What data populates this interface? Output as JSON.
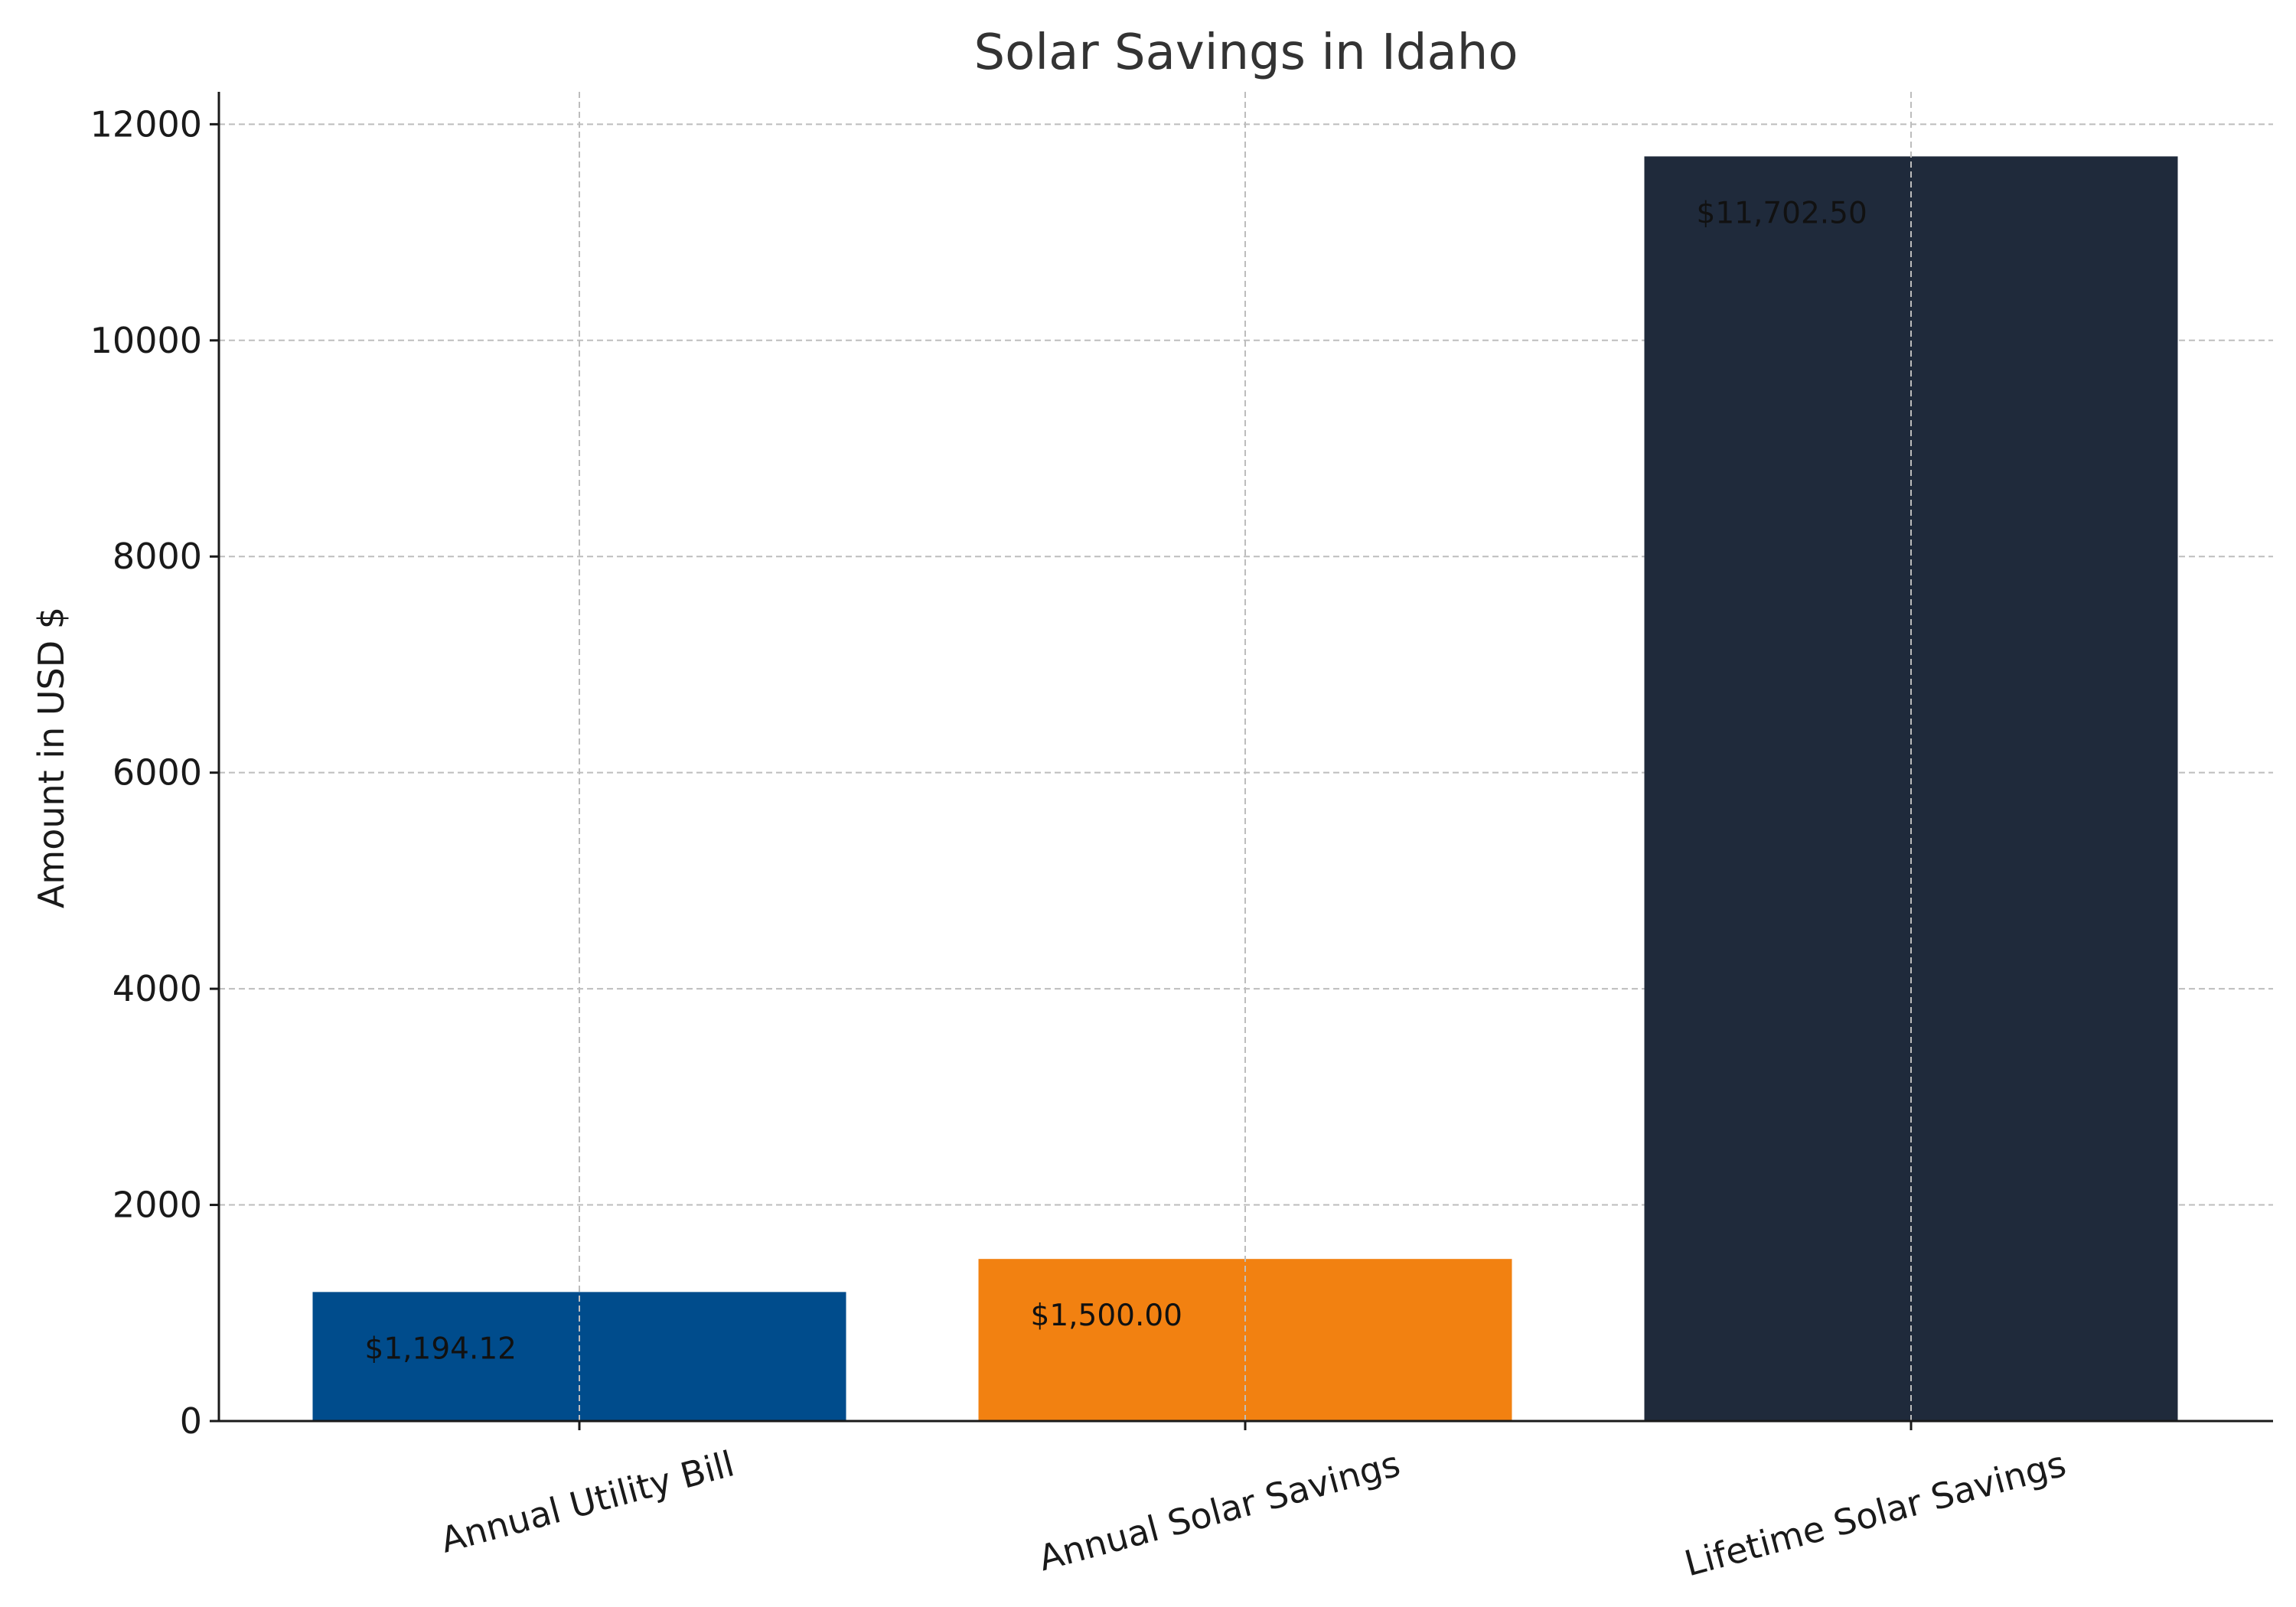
{
  "chart_data": {
    "type": "bar",
    "title": "Solar Savings in Idaho",
    "xlabel": "",
    "ylabel": "Amount in USD $",
    "categories": [
      "Annual Utility Bill",
      "Annual Solar Savings",
      "Lifetime Solar Savings"
    ],
    "values": [
      1194.12,
      1500.0,
      11702.5
    ],
    "value_labels": [
      "$1,194.12",
      "$1,500.00",
      "$11,702.50"
    ],
    "colors": [
      "#004c8c",
      "#f28111",
      "#1f2a3b"
    ],
    "ylim": [
      0,
      12300
    ],
    "yticks": [
      0,
      2000,
      4000,
      6000,
      8000,
      10000,
      12000
    ],
    "ytick_labels": [
      "0",
      "2000",
      "4000",
      "6000",
      "8000",
      "10000",
      "12000"
    ],
    "grid": true,
    "legend": "none"
  }
}
